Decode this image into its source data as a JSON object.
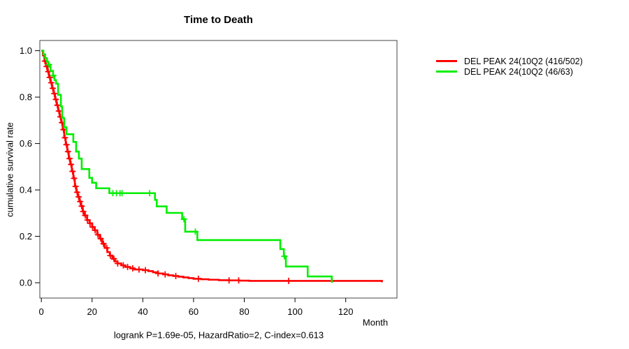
{
  "chart_data": {
    "type": "line",
    "subtype": "kaplan-meier-step",
    "title": "Time to Death",
    "xlabel": "Month",
    "ylabel": "cumulative survival rate",
    "annotation": "logrank P=1.69e-05, HazardRatio=2, C-index=0.613",
    "grid": false,
    "legend_position": "right-outside",
    "x_axis": {
      "ticks": [
        0,
        20,
        40,
        60,
        80,
        100,
        120
      ],
      "tick_labels": [
        "0",
        "20",
        "40",
        "60",
        "80",
        "100",
        "120"
      ],
      "range": [
        -0.6,
        140.2
      ]
    },
    "y_axis": {
      "ticks": [
        0.0,
        0.2,
        0.4,
        0.6,
        0.8,
        1.0
      ],
      "tick_labels": [
        "0.0",
        "0.2",
        "0.4",
        "0.6",
        "0.8",
        "1.0"
      ],
      "range": [
        -0.066,
        1.044
      ]
    },
    "series": [
      {
        "name": "group1",
        "label": "DEL PEAK 24(10Q2 (416/502)",
        "color": "#ff0000",
        "events_total": "416/502",
        "points": [
          [
            0,
            1.0
          ],
          [
            0.6,
            0.98
          ],
          [
            1.2,
            0.955
          ],
          [
            1.8,
            0.932
          ],
          [
            2.4,
            0.91
          ],
          [
            3.0,
            0.885
          ],
          [
            3.6,
            0.862
          ],
          [
            4.2,
            0.838
          ],
          [
            4.8,
            0.815
          ],
          [
            5.4,
            0.79
          ],
          [
            6.0,
            0.765
          ],
          [
            6.6,
            0.74
          ],
          [
            7.2,
            0.715
          ],
          [
            7.8,
            0.69
          ],
          [
            8.4,
            0.66
          ],
          [
            9.0,
            0.625
          ],
          [
            9.6,
            0.595
          ],
          [
            10.2,
            0.565
          ],
          [
            10.8,
            0.535
          ],
          [
            11.4,
            0.51
          ],
          [
            12.0,
            0.48
          ],
          [
            12.6,
            0.45
          ],
          [
            13.2,
            0.415
          ],
          [
            13.8,
            0.39
          ],
          [
            14.4,
            0.37
          ],
          [
            15.0,
            0.35
          ],
          [
            15.6,
            0.33
          ],
          [
            16.3,
            0.307
          ],
          [
            17.0,
            0.29
          ],
          [
            18.0,
            0.27
          ],
          [
            19.0,
            0.256
          ],
          [
            20.0,
            0.24
          ],
          [
            21.0,
            0.226
          ],
          [
            22.0,
            0.207
          ],
          [
            23.0,
            0.19
          ],
          [
            24.0,
            0.168
          ],
          [
            25.0,
            0.15
          ],
          [
            26.0,
            0.132
          ],
          [
            27.0,
            0.117
          ],
          [
            28.0,
            0.103
          ],
          [
            29.0,
            0.092
          ],
          [
            30.0,
            0.083
          ],
          [
            31.5,
            0.075
          ],
          [
            33.0,
            0.068
          ],
          [
            35.0,
            0.062
          ],
          [
            36.7,
            0.057
          ],
          [
            40.0,
            0.054
          ],
          [
            42.2,
            0.05
          ],
          [
            44.0,
            0.045
          ],
          [
            46.0,
            0.04
          ],
          [
            48.0,
            0.036
          ],
          [
            50.0,
            0.032
          ],
          [
            52.0,
            0.029
          ],
          [
            54.0,
            0.026
          ],
          [
            56.0,
            0.023
          ],
          [
            58.0,
            0.02
          ],
          [
            60.0,
            0.017
          ],
          [
            63.0,
            0.015
          ],
          [
            66.0,
            0.013
          ],
          [
            70.0,
            0.011
          ],
          [
            74.0,
            0.01
          ],
          [
            78.0,
            0.009
          ],
          [
            82.0,
            0.008
          ],
          [
            134.3,
            0.006
          ],
          [
            134.6,
            0.006
          ]
        ],
        "censor_months": [
          1.4,
          2.1,
          2.7,
          3.3,
          3.9,
          4.5,
          5.1,
          5.7,
          6.3,
          6.9,
          7.5,
          8.1,
          8.7,
          9.3,
          9.9,
          10.5,
          11.1,
          11.7,
          12.3,
          12.9,
          13.5,
          14.1,
          14.7,
          15.3,
          15.9,
          16.5,
          17.3,
          18.2,
          19.2,
          20.2,
          21.2,
          22.3,
          23.4,
          24.5,
          25.8,
          27.2,
          28.6,
          30.1,
          32.3,
          34.0,
          36.0,
          38.5,
          41.0,
          46.0,
          48.8,
          53.0,
          61.9,
          74.0,
          77.8,
          97.5
        ]
      },
      {
        "name": "group2",
        "label": "DEL PEAK 24(10Q2 (46/63)",
        "color": "#00ee00",
        "events_total": "46/63",
        "points": [
          [
            0,
            1.0
          ],
          [
            0.8,
            0.984
          ],
          [
            1.5,
            0.968
          ],
          [
            2.2,
            0.952
          ],
          [
            2.8,
            0.94
          ],
          [
            3.6,
            0.913
          ],
          [
            4.6,
            0.893
          ],
          [
            5.2,
            0.873
          ],
          [
            5.8,
            0.858
          ],
          [
            6.6,
            0.81
          ],
          [
            7.7,
            0.76
          ],
          [
            8.2,
            0.71
          ],
          [
            9.0,
            0.67
          ],
          [
            9.9,
            0.64
          ],
          [
            12.6,
            0.607
          ],
          [
            13.7,
            0.565
          ],
          [
            14.8,
            0.535
          ],
          [
            15.9,
            0.49
          ],
          [
            18.9,
            0.452
          ],
          [
            20.0,
            0.431
          ],
          [
            21.6,
            0.407
          ],
          [
            26.8,
            0.386
          ],
          [
            44.8,
            0.357
          ],
          [
            45.5,
            0.329
          ],
          [
            49.4,
            0.301
          ],
          [
            55.5,
            0.274
          ],
          [
            56.7,
            0.22
          ],
          [
            61.5,
            0.184
          ],
          [
            94.2,
            0.145
          ],
          [
            95.6,
            0.114
          ],
          [
            96.4,
            0.07
          ],
          [
            105.0,
            0.027
          ],
          [
            114.5,
            0.0
          ]
        ],
        "censor_months": [
          3.0,
          4.7,
          28.2,
          29.6,
          31.0,
          31.8,
          42.7,
          56.2,
          60.7,
          95.8
        ]
      }
    ]
  }
}
